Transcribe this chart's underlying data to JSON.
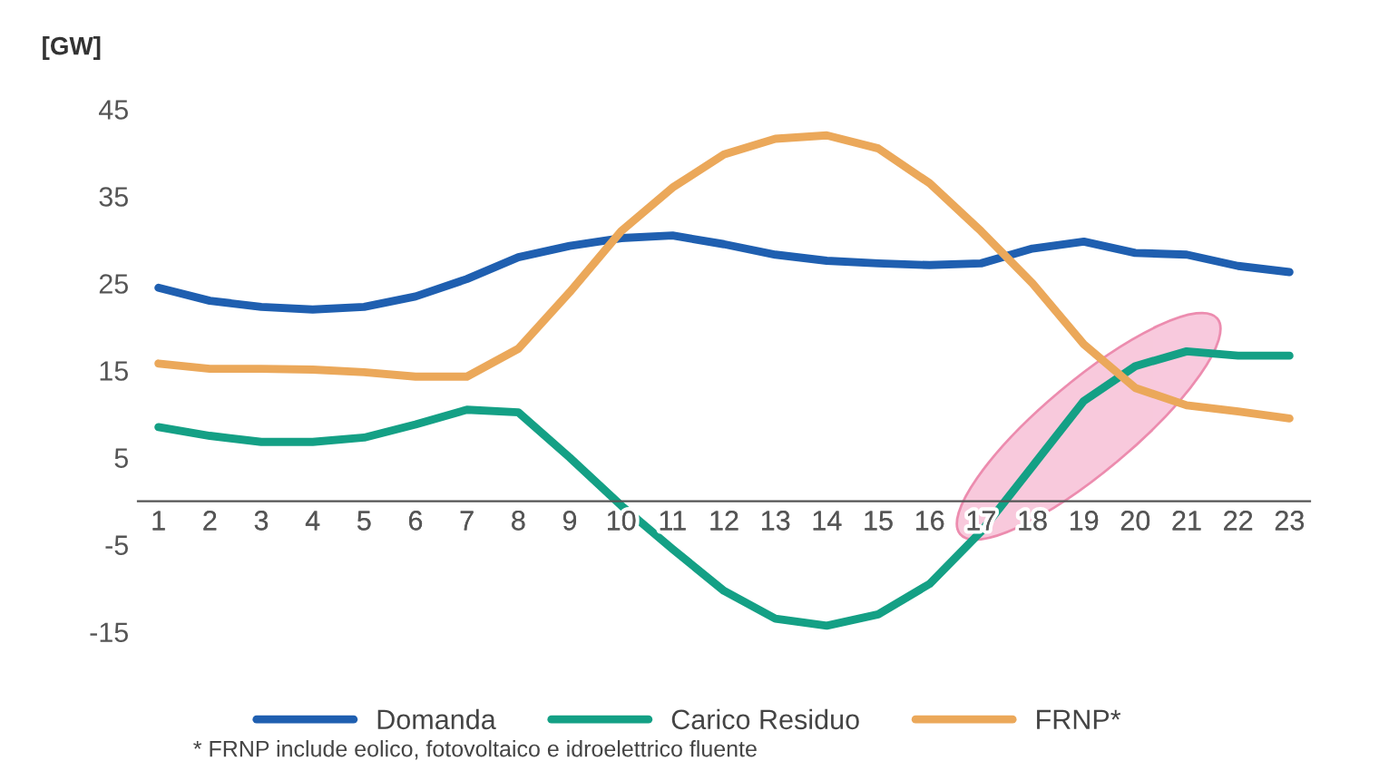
{
  "chart_data": {
    "type": "line",
    "ylabel": "[GW]",
    "categories": [
      "1",
      "2",
      "3",
      "4",
      "5",
      "6",
      "7",
      "8",
      "9",
      "10",
      "11",
      "12",
      "13",
      "14",
      "15",
      "16",
      "17",
      "18",
      "19",
      "20",
      "21",
      "22",
      "23"
    ],
    "series": [
      {
        "name": "Domanda",
        "color": "#1f5fb0",
        "values": [
          24.5,
          23,
          22.3,
          22,
          22.3,
          23.5,
          25.5,
          28,
          29.3,
          30.2,
          30.5,
          29.5,
          28.3,
          27.6,
          27.3,
          27.1,
          27.3,
          29,
          29.8,
          28.5,
          28.3,
          27,
          26.3
        ]
      },
      {
        "name": "Carico Residuo",
        "color": "#14a085",
        "values": [
          8.5,
          7.5,
          6.8,
          6.8,
          7.3,
          8.8,
          10.5,
          10.2,
          5,
          -0.5,
          -5.5,
          -10.3,
          -13.5,
          -14.3,
          -13,
          -9.5,
          -3.5,
          4,
          11.5,
          15.5,
          17.2,
          16.7,
          16.7
        ]
      },
      {
        "name": "FRNP*",
        "color": "#eba85a",
        "values": [
          15.8,
          15.2,
          15.2,
          15.1,
          14.8,
          14.3,
          14.3,
          17.5,
          24,
          31,
          36,
          39.8,
          41.6,
          42,
          40.5,
          36.5,
          31,
          25,
          18,
          13,
          11,
          10.3,
          9.5
        ]
      }
    ],
    "ylim": [
      -15,
      45
    ],
    "yticks": [
      -15,
      -5,
      5,
      15,
      25,
      35,
      45
    ],
    "grid": false,
    "legend": "bottom",
    "line_style": "solid",
    "marker": "none",
    "annotations": [
      "* FRNP include eolico, fotovoltaico e idroelettrico fluente"
    ]
  }
}
